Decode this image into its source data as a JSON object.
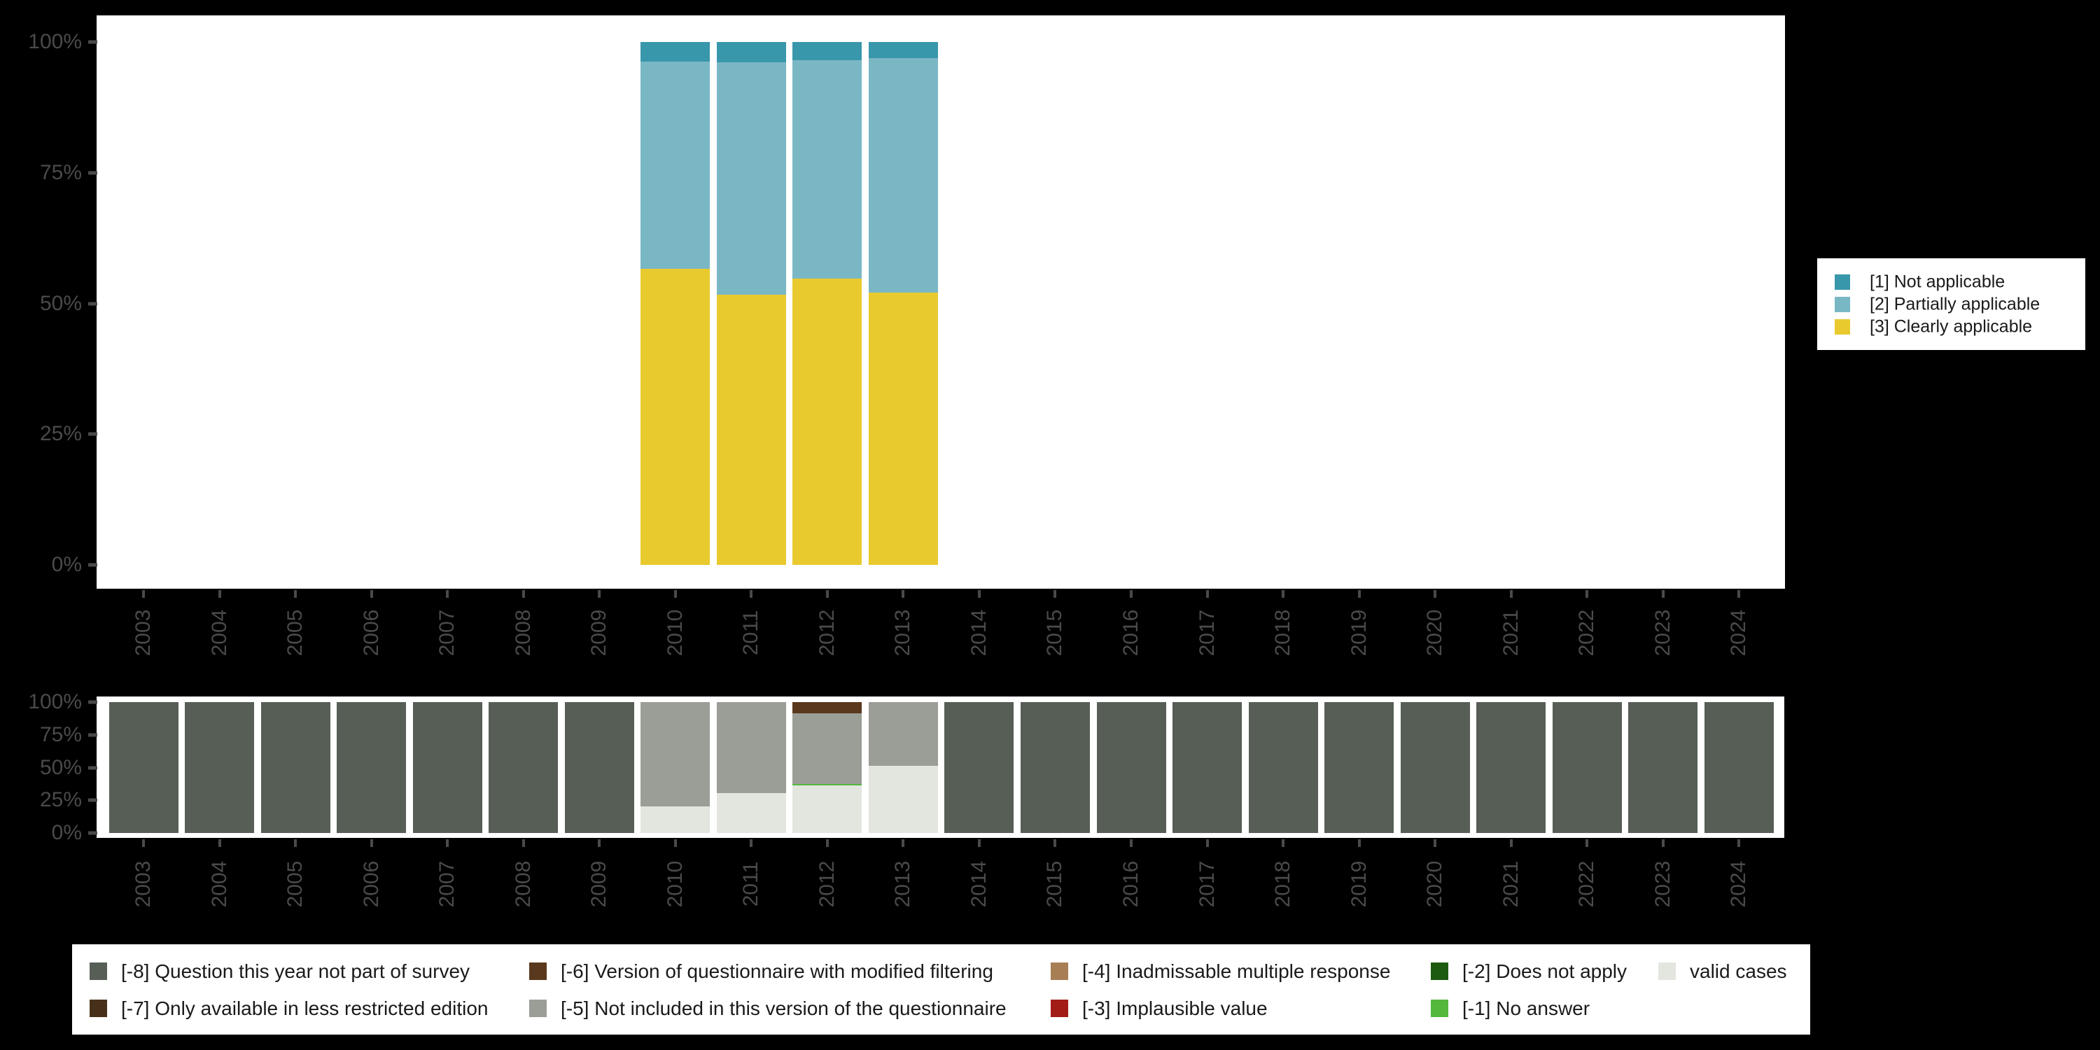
{
  "colors": {
    "background": "#000000",
    "panel": "#ffffff",
    "axis_text": "#4a4a4a",
    "legend_text": "#1a1a1a"
  },
  "y_axis": {
    "tick_labels": [
      "100%",
      "75%",
      "50%",
      "25%",
      "0%"
    ]
  },
  "x_axis": {
    "years": [
      "2003",
      "2004",
      "2005",
      "2006",
      "2007",
      "2008",
      "2009",
      "2010",
      "2011",
      "2012",
      "2013",
      "2014",
      "2015",
      "2016",
      "2017",
      "2018",
      "2019",
      "2020",
      "2021",
      "2022",
      "2023",
      "2024"
    ]
  },
  "legend_applicable": {
    "items": [
      {
        "label": "[1] Not applicable",
        "color": "#3997ab"
      },
      {
        "label": "[2] Partially applicable",
        "color": "#7ab7c5"
      },
      {
        "label": "[3] Clearly applicable",
        "color": "#e8ca2f"
      }
    ]
  },
  "legend_missing": {
    "items": [
      {
        "label": "[-8] Question this year not part of survey",
        "color": "#565e56"
      },
      {
        "label": "[-7] Only available in less restricted edition",
        "color": "#47301a"
      },
      {
        "label": "[-6] Version of questionnaire with modified filtering",
        "color": "#59381d"
      },
      {
        "label": "[-5] Not included in this version of the questionnaire",
        "color": "#9a9e96"
      },
      {
        "label": "[-4] Inadmissable multiple response",
        "color": "#a87f55"
      },
      {
        "label": "[-3] Implausible value",
        "color": "#a31d17"
      },
      {
        "label": "[-2] Does not apply",
        "color": "#1d5b10"
      },
      {
        "label": "[-1] No answer",
        "color": "#53b83c"
      },
      {
        "label": "valid cases",
        "color": "#e2e6df"
      }
    ]
  },
  "chart_data": [
    {
      "type": "bar",
      "stacked": true,
      "title": "",
      "categories": [
        "2003",
        "2004",
        "2005",
        "2006",
        "2007",
        "2008",
        "2009",
        "2010",
        "2011",
        "2012",
        "2013",
        "2014",
        "2015",
        "2016",
        "2017",
        "2018",
        "2019",
        "2020",
        "2021",
        "2022",
        "2023",
        "2024"
      ],
      "ylim": [
        0,
        100
      ],
      "ytick_labels": [
        "0%",
        "25%",
        "50%",
        "75%",
        "100%"
      ],
      "grid": false,
      "legend_position": "right",
      "series": [
        {
          "name": "[3] Clearly applicable",
          "color": "#e8ca2f",
          "values": [
            0,
            0,
            0,
            0,
            0,
            0,
            0,
            56.6,
            51.7,
            54.8,
            52.1,
            0,
            0,
            0,
            0,
            0,
            0,
            0,
            0,
            0,
            0,
            0
          ]
        },
        {
          "name": "[2] Partially applicable",
          "color": "#7ab7c5",
          "values": [
            0,
            0,
            0,
            0,
            0,
            0,
            0,
            39.6,
            44.4,
            41.7,
            44.8,
            0,
            0,
            0,
            0,
            0,
            0,
            0,
            0,
            0,
            0,
            0
          ]
        },
        {
          "name": "[1] Not applicable",
          "color": "#3997ab",
          "values": [
            0,
            0,
            0,
            0,
            0,
            0,
            0,
            3.8,
            3.9,
            3.5,
            3.1,
            0,
            0,
            0,
            0,
            0,
            0,
            0,
            0,
            0,
            0,
            0
          ]
        }
      ]
    },
    {
      "type": "bar",
      "stacked": true,
      "title": "",
      "categories": [
        "2003",
        "2004",
        "2005",
        "2006",
        "2007",
        "2008",
        "2009",
        "2010",
        "2011",
        "2012",
        "2013",
        "2014",
        "2015",
        "2016",
        "2017",
        "2018",
        "2019",
        "2020",
        "2021",
        "2022",
        "2023",
        "2024"
      ],
      "ylim": [
        0,
        100
      ],
      "ytick_labels": [
        "0%",
        "25%",
        "50%",
        "75%",
        "100%"
      ],
      "grid": false,
      "legend_position": "bottom",
      "series": [
        {
          "name": "valid cases",
          "color": "#e2e6df",
          "values": [
            0,
            0,
            0,
            0,
            0,
            0,
            0,
            20.3,
            30.7,
            36.5,
            51.3,
            0,
            0,
            0,
            0,
            0,
            0,
            0,
            0,
            0,
            0,
            0
          ]
        },
        {
          "name": "[-1] No answer",
          "color": "#53b83c",
          "values": [
            0,
            0,
            0,
            0,
            0,
            0,
            0,
            0,
            0,
            1.0,
            0,
            0,
            0,
            0,
            0,
            0,
            0,
            0,
            0,
            0,
            0,
            0
          ]
        },
        {
          "name": "[-5] Not included in this version of the questionnaire",
          "color": "#9a9e96",
          "values": [
            0,
            0,
            0,
            0,
            0,
            0,
            0,
            79.7,
            69.3,
            53.9,
            48.7,
            0,
            0,
            0,
            0,
            0,
            0,
            0,
            0,
            0,
            0,
            0
          ]
        },
        {
          "name": "[-6] Version of questionnaire with modified filtering",
          "color": "#59381d",
          "values": [
            0,
            0,
            0,
            0,
            0,
            0,
            0,
            0,
            0,
            8.6,
            0,
            0,
            0,
            0,
            0,
            0,
            0,
            0,
            0,
            0,
            0,
            0
          ]
        },
        {
          "name": "[-8] Question this year not part of survey",
          "color": "#565e56",
          "values": [
            100,
            100,
            100,
            100,
            100,
            100,
            100,
            0,
            0,
            0,
            0,
            100,
            100,
            100,
            100,
            100,
            100,
            100,
            100,
            100,
            100,
            100
          ]
        }
      ]
    }
  ]
}
